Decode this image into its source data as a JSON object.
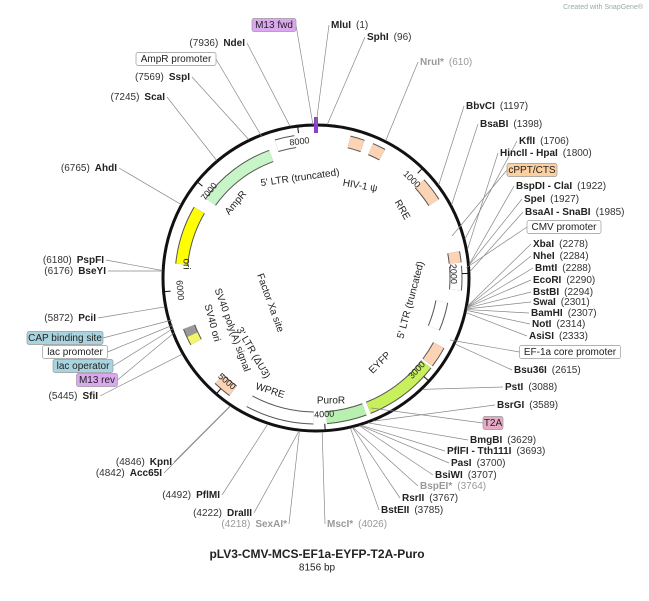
{
  "watermark": "Created with SnapGene®",
  "map": {
    "title": "pLV3-CMV-MCS-EF1a-EYFP-T2A-Puro",
    "length": {
      "value": 8156,
      "label": "8156 bp"
    },
    "ticks": [
      1000,
      2000,
      3000,
      4000,
      5000,
      6000,
      7000,
      8000
    ],
    "enzymes": [
      {
        "name": "MluI",
        "position": {
          "value": 1,
          "label": "(1)"
        }
      },
      {
        "name": "SphI",
        "position": {
          "value": 96,
          "label": "(96)"
        }
      },
      {
        "name": "NruI*",
        "position": {
          "value": 610,
          "label": "(610)"
        },
        "color": "#999999"
      },
      {
        "name": "BbvCI",
        "position": {
          "value": 1197,
          "label": "(1197)"
        }
      },
      {
        "name": "BsaBI",
        "position": {
          "value": 1398,
          "label": "(1398)"
        }
      },
      {
        "name": "KflI",
        "position": {
          "value": 1706,
          "label": "(1706)"
        }
      },
      {
        "name": "HincII - HpaI",
        "position": {
          "value": 1800,
          "label": "(1800)"
        }
      },
      {
        "name": "BspDI - ClaI",
        "position": {
          "value": 1922,
          "label": "(1922)"
        }
      },
      {
        "name": "SpeI",
        "position": {
          "value": 1927,
          "label": "(1927)"
        }
      },
      {
        "name": "BsaAI - SnaBI",
        "position": {
          "value": 1985,
          "label": "(1985)"
        }
      },
      {
        "name": "XbaI",
        "position": {
          "value": 2278,
          "label": "(2278)"
        }
      },
      {
        "name": "NheI",
        "position": {
          "value": 2284,
          "label": "(2284)"
        }
      },
      {
        "name": "BmtI",
        "position": {
          "value": 2288,
          "label": "(2288)"
        }
      },
      {
        "name": "EcoRI",
        "position": {
          "value": 2290,
          "label": "(2290)"
        }
      },
      {
        "name": "BstBI",
        "position": {
          "value": 2294,
          "label": "(2294)"
        }
      },
      {
        "name": "SwaI",
        "position": {
          "value": 2301,
          "label": "(2301)"
        }
      },
      {
        "name": "BamHI",
        "position": {
          "value": 2307,
          "label": "(2307)"
        }
      },
      {
        "name": "NotI",
        "position": {
          "value": 2314,
          "label": "(2314)"
        }
      },
      {
        "name": "AsiSI",
        "position": {
          "value": 2333,
          "label": "(2333)"
        }
      },
      {
        "name": "Bsu36I",
        "position": {
          "value": 2615,
          "label": "(2615)"
        }
      },
      {
        "name": "PstI",
        "position": {
          "value": 3088,
          "label": "(3088)"
        }
      },
      {
        "name": "BsrGI",
        "position": {
          "value": 3589,
          "label": "(3589)"
        }
      },
      {
        "name": "BmgBI",
        "position": {
          "value": 3629,
          "label": "(3629)"
        }
      },
      {
        "name": "PflFI - Tth111I",
        "position": {
          "value": 3693,
          "label": "(3693)"
        }
      },
      {
        "name": "PasI",
        "position": {
          "value": 3700,
          "label": "(3700)"
        }
      },
      {
        "name": "BsiWI",
        "position": {
          "value": 3707,
          "label": "(3707)"
        }
      },
      {
        "name": "BspEI*",
        "position": {
          "value": 3764,
          "label": "(3764)"
        },
        "color": "#999999"
      },
      {
        "name": "RsrII",
        "position": {
          "value": 3767,
          "label": "(3767)"
        }
      },
      {
        "name": "BstEII",
        "position": {
          "value": 3785,
          "label": "(3785)"
        }
      },
      {
        "name": "MscI*",
        "position": {
          "value": 4026,
          "label": "(4026)"
        },
        "color": "#999999"
      },
      {
        "name": "SexAI*",
        "position": {
          "value": 4218,
          "label": "(4218)"
        },
        "color": "#999999"
      },
      {
        "name": "DraIII",
        "position": {
          "value": 4222,
          "label": "(4222)"
        }
      },
      {
        "name": "PflMI",
        "position": {
          "value": 4492,
          "label": "(4492)"
        }
      },
      {
        "name": "Acc65I",
        "position": {
          "value": 4842,
          "label": "(4842)"
        }
      },
      {
        "name": "KpnI",
        "position": {
          "value": 4846,
          "label": "(4846)"
        }
      },
      {
        "name": "SfiI",
        "position": {
          "value": 5445,
          "label": "(5445)"
        }
      },
      {
        "name": "PciI",
        "position": {
          "value": 5872,
          "label": "(5872)"
        }
      },
      {
        "name": "BseYI",
        "position": {
          "value": 6176,
          "label": "(6176)"
        }
      },
      {
        "name": "PspFI",
        "position": {
          "value": 6180,
          "label": "(6180)"
        }
      },
      {
        "name": "AhdI",
        "position": {
          "value": 6765,
          "label": "(6765)"
        }
      },
      {
        "name": "ScaI",
        "position": {
          "value": 7245,
          "label": "(7245)"
        }
      },
      {
        "name": "SspI",
        "position": {
          "value": 7569,
          "label": "(7569)"
        }
      },
      {
        "name": "NdeI",
        "position": {
          "value": 7936,
          "label": "(7936)"
        }
      }
    ],
    "features": [
      {
        "label": "M13 fwd",
        "color": "#dba8f0"
      },
      {
        "label": "AmpR promoter",
        "color": "#ffffff"
      },
      {
        "label": "cPPT/CTS",
        "color": "#fcd0a0"
      },
      {
        "label": "CMV promoter",
        "color": "#ffffff"
      },
      {
        "label": "EF-1a core promoter",
        "color": "#ffffff"
      },
      {
        "label": "T2A",
        "color": "#e6a9c6"
      },
      {
        "label": "CAP binding site",
        "color": "#a9d3de"
      },
      {
        "label": "lac promoter",
        "color": "#ffffff"
      },
      {
        "label": "lac operator",
        "color": "#a9d3de"
      },
      {
        "label": "M13 rev",
        "color": "#dba8f0"
      }
    ],
    "inner_labels": [
      "5' LTR (truncated)",
      "HIV-1 ψ",
      "RRE",
      "5' LTR (truncated)",
      "EYFP",
      "PuroR",
      "WPRE",
      "3' LTR (ΔU3)",
      "SV40 poly(A) signal",
      "SV40 ori",
      "Factor Xa site",
      "AmpR",
      "ori"
    ]
  }
}
